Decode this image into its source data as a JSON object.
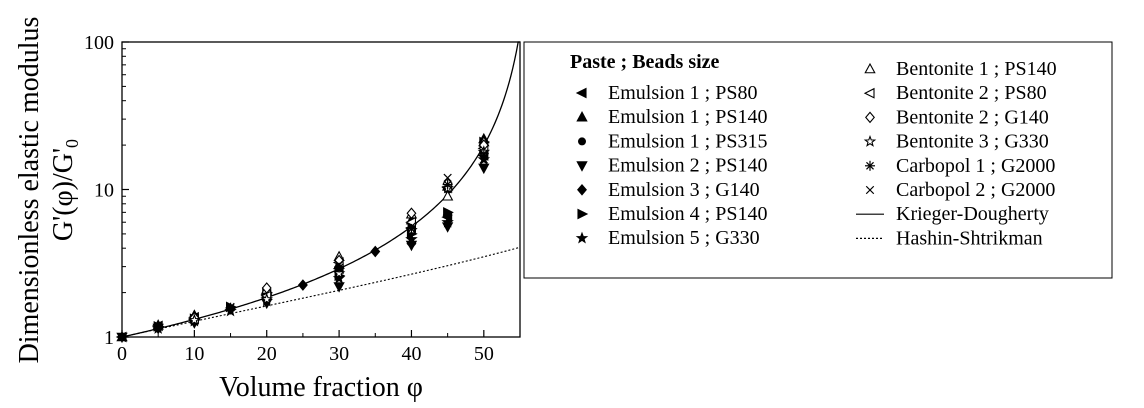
{
  "chart_data": {
    "type": "scatter",
    "xlabel": "Volume fraction φ",
    "ylabel_line1": "Dimensionless elastic modulus",
    "ylabel_line2_main": "G'(φ)/G'",
    "ylabel_line2_sub": "0",
    "xlim": [
      0,
      55
    ],
    "ylim": [
      1,
      100
    ],
    "y_scale": "log",
    "x_ticks": [
      0,
      10,
      20,
      30,
      40,
      50
    ],
    "y_ticks": [
      1,
      10,
      100
    ],
    "legend_position": "right",
    "legend_header": "Paste ; Beads size",
    "series": [
      {
        "name": "Emulsion 1 ; PS80",
        "marker": "tri-left-filled",
        "points": [
          [
            0,
            1.0
          ],
          [
            5,
            1.19
          ],
          [
            10,
            1.36
          ],
          [
            20,
            1.95
          ],
          [
            30,
            2.9
          ],
          [
            40,
            5.5
          ],
          [
            45,
            6.5
          ],
          [
            50,
            17
          ]
        ]
      },
      {
        "name": "Emulsion 1 ; PS140",
        "marker": "tri-up-filled",
        "points": [
          [
            0,
            1.0
          ],
          [
            5,
            1.2
          ],
          [
            10,
            1.4
          ],
          [
            20,
            2.05
          ],
          [
            30,
            3.1
          ],
          [
            40,
            6.2
          ],
          [
            45,
            10.5
          ],
          [
            50,
            22
          ]
        ]
      },
      {
        "name": "Emulsion 1 ; PS315",
        "marker": "circle-filled",
        "points": [
          [
            0,
            1.0
          ],
          [
            5,
            1.17
          ],
          [
            10,
            1.3
          ],
          [
            20,
            1.8
          ],
          [
            30,
            2.8
          ],
          [
            40,
            5.8
          ],
          [
            45,
            10
          ],
          [
            50,
            19
          ]
        ]
      },
      {
        "name": "Emulsion 2 ; PS140",
        "marker": "tri-down-filled",
        "points": [
          [
            0,
            1.0
          ],
          [
            5,
            1.15
          ],
          [
            10,
            1.25
          ],
          [
            20,
            1.7
          ],
          [
            30,
            2.2
          ],
          [
            40,
            4.2
          ],
          [
            45,
            5.6
          ],
          [
            50,
            14
          ]
        ]
      },
      {
        "name": "Emulsion 3 ; G140",
        "marker": "diamond-filled",
        "points": [
          [
            5,
            1.15
          ],
          [
            10,
            1.3
          ],
          [
            15,
            1.55
          ],
          [
            20,
            1.85
          ],
          [
            25,
            2.25
          ],
          [
            30,
            3.0
          ],
          [
            35,
            3.8
          ],
          [
            40,
            4.3
          ],
          [
            45,
            6.7
          ],
          [
            50,
            18
          ]
        ]
      },
      {
        "name": "Emulsion 4 ; PS140",
        "marker": "tri-right-filled",
        "points": [
          [
            5,
            1.18
          ],
          [
            10,
            1.33
          ],
          [
            15,
            1.6
          ],
          [
            20,
            2.0
          ],
          [
            30,
            2.6
          ],
          [
            40,
            5.0
          ],
          [
            45,
            7.0
          ],
          [
            50,
            21
          ]
        ]
      },
      {
        "name": "Emulsion 5 ; G330",
        "marker": "star-filled",
        "points": [
          [
            5,
            1.14
          ],
          [
            10,
            1.28
          ],
          [
            15,
            1.5
          ],
          [
            20,
            1.75
          ],
          [
            30,
            2.5
          ],
          [
            40,
            4.6
          ],
          [
            45,
            6.0
          ],
          [
            50,
            16
          ]
        ]
      },
      {
        "name": "Bentonite 1 ; PS140",
        "marker": "tri-up-open",
        "points": [
          [
            10,
            1.38
          ],
          [
            20,
            2.1
          ],
          [
            30,
            3.5
          ],
          [
            40,
            6.8
          ],
          [
            45,
            9.0
          ],
          [
            50,
            21
          ]
        ]
      },
      {
        "name": "Bentonite 2 ; PS80",
        "marker": "tri-left-open",
        "points": [
          [
            10,
            1.32
          ],
          [
            20,
            1.9
          ],
          [
            30,
            3.2
          ],
          [
            40,
            6.0
          ],
          [
            45,
            10.3
          ],
          [
            50,
            19
          ]
        ]
      },
      {
        "name": "Bentonite 2 ; G140",
        "marker": "diamond-open",
        "points": [
          [
            10,
            1.35
          ],
          [
            20,
            2.15
          ],
          [
            30,
            3.3
          ],
          [
            40,
            6.9
          ],
          [
            45,
            11
          ],
          [
            50,
            20
          ]
        ]
      },
      {
        "name": "Bentonite 3 ; G330",
        "marker": "star-open",
        "points": [
          [
            10,
            1.3
          ],
          [
            20,
            1.8
          ],
          [
            30,
            2.7
          ],
          [
            40,
            5.3
          ],
          [
            45,
            10.2
          ],
          [
            50,
            18
          ]
        ]
      },
      {
        "name": "Carbopol 1 ; G2000",
        "marker": "asterisk",
        "points": [
          [
            15,
            1.58
          ],
          [
            30,
            2.95
          ],
          [
            40,
            5.4
          ],
          [
            45,
            10.8
          ],
          [
            50,
            17.5
          ]
        ]
      },
      {
        "name": "Carbopol 2 ; G2000",
        "marker": "cross",
        "points": [
          [
            15,
            1.6
          ],
          [
            30,
            3.1
          ],
          [
            40,
            5.6
          ],
          [
            45,
            12
          ],
          [
            50,
            16
          ]
        ]
      }
    ],
    "curves": [
      {
        "name": "Krieger-Dougherty",
        "style": "solid",
        "model": "krieger-dougherty",
        "phi_max": 0.57,
        "intrinsic_viscosity": 2.5
      },
      {
        "name": "Hashin-Shtrikman",
        "style": "dotted",
        "model": "hashin-shtrikman"
      }
    ]
  }
}
